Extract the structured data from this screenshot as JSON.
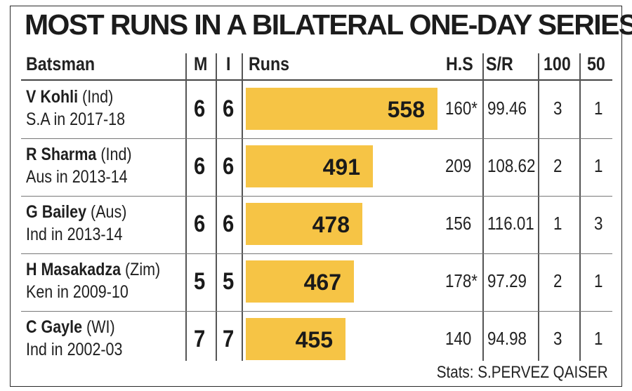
{
  "title": "MOST RUNS IN A BILATERAL ONE-DAY SERIES",
  "headers": {
    "batsman": "Batsman",
    "m": "M",
    "i": "I",
    "runs": "Runs",
    "hs": "H.S",
    "sr": "S/R",
    "hundreds": "100",
    "fifties": "50"
  },
  "source": "Stats: S.PERVEZ QAISER",
  "colors": {
    "bar": "#f6c445"
  },
  "chart_data": {
    "type": "table",
    "runs_axis_max": 558,
    "rows": [
      {
        "name": "V Kohli",
        "team": "(Ind)",
        "series": "S.A in 2017-18",
        "m": "6",
        "i": "6",
        "runs": 558,
        "hs": "160*",
        "sr": "99.46",
        "hundreds": "3",
        "fifties": "1"
      },
      {
        "name": "R Sharma",
        "team": "(Ind)",
        "series": "Aus in 2013-14",
        "m": "6",
        "i": "6",
        "runs": 491,
        "hs": "209",
        "sr": "108.62",
        "hundreds": "2",
        "fifties": "1"
      },
      {
        "name": "G Bailey",
        "team": "(Aus)",
        "series": "Ind in 2013-14",
        "m": "6",
        "i": "6",
        "runs": 478,
        "hs": "156",
        "sr": "116.01",
        "hundreds": "1",
        "fifties": "3"
      },
      {
        "name": "H Masakadza",
        "team": "(Zim)",
        "series": "Ken in 2009-10",
        "m": "5",
        "i": "5",
        "runs": 467,
        "hs": "178*",
        "sr": "97.29",
        "hundreds": "2",
        "fifties": "1"
      },
      {
        "name": "C Gayle",
        "team": "(WI)",
        "series": "Ind in 2002-03",
        "m": "7",
        "i": "7",
        "runs": 455,
        "hs": "140",
        "sr": "94.98",
        "hundreds": "3",
        "fifties": "1"
      }
    ]
  }
}
